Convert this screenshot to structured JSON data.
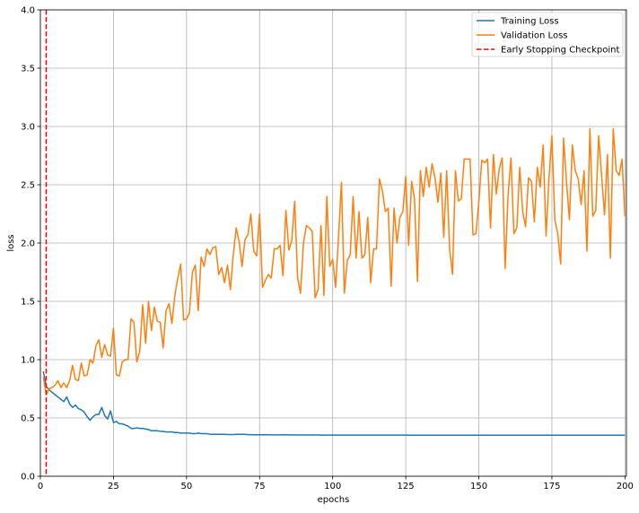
{
  "chart_data": {
    "type": "line",
    "title": "",
    "xlabel": "epochs",
    "ylabel": "loss",
    "xlim": [
      0,
      200.5
    ],
    "ylim": [
      0,
      4.0
    ],
    "grid": true,
    "legend_position": "top-right",
    "xticks": [
      0,
      25,
      50,
      75,
      100,
      125,
      150,
      175,
      200
    ],
    "yticks": [
      0.0,
      0.5,
      1.0,
      1.5,
      2.0,
      2.5,
      3.0,
      3.5,
      4.0
    ],
    "xtick_labels": [
      "0",
      "25",
      "50",
      "75",
      "100",
      "125",
      "150",
      "175",
      "200"
    ],
    "ytick_labels": [
      "0.0",
      "0.5",
      "1.0",
      "1.5",
      "2.0",
      "2.5",
      "3.0",
      "3.5",
      "4.0"
    ],
    "series": [
      {
        "name": "Training Loss",
        "color": "#1f77b4",
        "x_start": 1,
        "values": [
          0.9,
          0.77,
          0.74,
          0.72,
          0.7,
          0.68,
          0.66,
          0.64,
          0.68,
          0.62,
          0.59,
          0.61,
          0.58,
          0.57,
          0.55,
          0.51,
          0.48,
          0.51,
          0.53,
          0.53,
          0.59,
          0.52,
          0.49,
          0.56,
          0.46,
          0.47,
          0.45,
          0.45,
          0.44,
          0.43,
          0.41,
          0.41,
          0.415,
          0.41,
          0.41,
          0.405,
          0.4,
          0.39,
          0.39,
          0.39,
          0.385,
          0.385,
          0.38,
          0.38,
          0.38,
          0.375,
          0.375,
          0.37,
          0.37,
          0.37,
          0.37,
          0.365,
          0.365,
          0.37,
          0.365,
          0.365,
          0.365,
          0.36,
          0.36,
          0.36,
          0.36,
          0.36,
          0.36,
          0.358,
          0.358,
          0.358,
          0.36,
          0.36,
          0.36,
          0.36,
          0.357,
          0.357,
          0.356,
          0.356,
          0.356,
          0.356,
          0.356,
          0.356,
          0.355,
          0.355,
          0.355,
          0.355,
          0.356,
          0.355,
          0.355,
          0.355,
          0.354,
          0.354,
          0.354,
          0.354,
          0.354,
          0.354,
          0.354,
          0.354,
          0.354,
          0.353,
          0.353,
          0.353,
          0.353,
          0.353,
          0.353,
          0.353,
          0.353,
          0.353,
          0.353,
          0.353,
          0.353,
          0.353,
          0.353,
          0.353,
          0.353,
          0.353,
          0.353,
          0.353,
          0.353,
          0.353,
          0.353,
          0.353,
          0.353,
          0.353,
          0.353,
          0.353,
          0.353,
          0.353,
          0.353,
          0.352,
          0.352,
          0.352,
          0.352,
          0.352,
          0.352,
          0.352,
          0.352,
          0.352,
          0.352,
          0.352,
          0.352,
          0.352,
          0.352,
          0.352,
          0.352,
          0.352,
          0.352,
          0.352,
          0.352,
          0.352,
          0.352,
          0.352,
          0.352,
          0.352,
          0.352,
          0.352,
          0.352,
          0.352,
          0.352,
          0.352,
          0.352,
          0.352,
          0.352,
          0.352,
          0.352,
          0.352,
          0.352,
          0.352,
          0.352,
          0.352,
          0.352,
          0.352,
          0.352,
          0.352,
          0.352,
          0.352,
          0.352,
          0.352,
          0.352,
          0.352,
          0.352,
          0.352,
          0.352,
          0.352,
          0.352,
          0.352,
          0.352,
          0.352,
          0.352,
          0.352,
          0.352,
          0.352,
          0.352,
          0.352,
          0.352,
          0.352,
          0.352,
          0.352,
          0.352,
          0.352,
          0.352,
          0.352,
          0.352,
          0.352
        ]
      },
      {
        "name": "Validation Loss",
        "color": "#ff7f0e",
        "x_start": 1,
        "values": [
          0.85,
          0.7,
          0.75,
          0.76,
          0.78,
          0.82,
          0.76,
          0.8,
          0.76,
          0.82,
          0.95,
          0.83,
          0.82,
          0.97,
          0.86,
          0.87,
          1.0,
          0.97,
          1.12,
          1.17,
          1.02,
          1.13,
          1.04,
          1.03,
          1.27,
          0.87,
          0.86,
          0.98,
          1.0,
          1.0,
          1.35,
          1.32,
          0.98,
          1.07,
          1.47,
          1.14,
          1.5,
          1.25,
          1.45,
          1.33,
          1.32,
          1.1,
          1.42,
          1.48,
          1.31,
          1.55,
          1.7,
          1.82,
          1.34,
          1.35,
          1.4,
          1.75,
          1.81,
          1.42,
          1.88,
          1.8,
          1.95,
          1.9,
          1.96,
          1.97,
          1.73,
          1.79,
          1.66,
          1.81,
          1.6,
          1.9,
          2.13,
          2.01,
          1.8,
          2.03,
          2.07,
          2.25,
          1.93,
          1.89,
          2.25,
          1.62,
          1.68,
          1.73,
          1.7,
          1.95,
          1.95,
          1.98,
          1.72,
          2.28,
          1.94,
          2.02,
          2.36,
          1.7,
          1.57,
          2.0,
          2.15,
          2.13,
          2.1,
          1.53,
          1.6,
          2.15,
          1.55,
          2.4,
          1.8,
          1.86,
          1.62,
          2.05,
          2.52,
          1.57,
          1.85,
          1.9,
          2.4,
          1.87,
          2.27,
          1.87,
          1.9,
          2.22,
          1.66,
          1.95,
          1.95,
          2.55,
          2.45,
          2.27,
          2.3,
          1.63,
          2.3,
          2.0,
          2.22,
          2.27,
          2.57,
          1.98,
          2.53,
          2.38,
          1.67,
          2.62,
          2.4,
          2.65,
          2.48,
          2.68,
          2.56,
          2.35,
          2.6,
          2.05,
          2.62,
          1.95,
          1.73,
          2.62,
          2.36,
          2.38,
          2.72,
          2.72,
          2.72,
          2.07,
          2.08,
          2.35,
          2.71,
          2.69,
          2.72,
          2.13,
          2.76,
          2.42,
          2.64,
          2.73,
          1.78,
          2.41,
          2.73,
          2.08,
          2.13,
          2.65,
          2.27,
          2.14,
          2.56,
          2.53,
          2.18,
          2.65,
          2.48,
          2.84,
          2.06,
          2.55,
          2.92,
          2.2,
          2.08,
          1.82,
          2.9,
          2.52,
          2.2,
          2.84,
          2.62,
          2.55,
          2.33,
          2.62,
          1.93,
          2.98,
          2.23,
          2.28,
          2.92,
          2.58,
          2.24,
          2.76,
          1.87,
          2.98,
          2.62,
          2.58,
          2.72,
          2.23
        ]
      }
    ],
    "vlines": [
      {
        "name": "Early Stopping Checkpoint",
        "x": 2,
        "color": "#ff0000",
        "style": "dashed"
      }
    ]
  }
}
